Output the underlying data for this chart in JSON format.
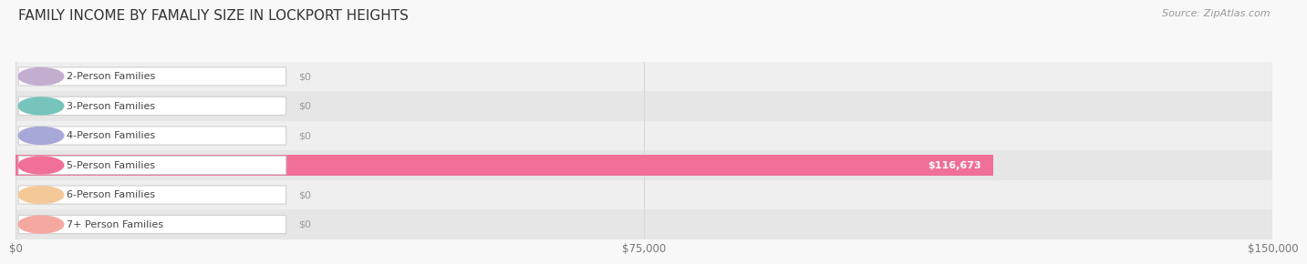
{
  "title": "FAMILY INCOME BY FAMALIY SIZE IN LOCKPORT HEIGHTS",
  "source": "Source: ZipAtlas.com",
  "categories": [
    "2-Person Families",
    "3-Person Families",
    "4-Person Families",
    "5-Person Families",
    "6-Person Families",
    "7+ Person Families"
  ],
  "values": [
    0,
    0,
    0,
    116673,
    0,
    0
  ],
  "bar_colors": [
    "#c4aed0",
    "#76c4bc",
    "#a8a8d8",
    "#f07098",
    "#f5c898",
    "#f5a8a0"
  ],
  "xlim_max": 150000,
  "xtick_values": [
    0,
    75000,
    150000
  ],
  "xtick_labels": [
    "$0",
    "$75,000",
    "$150,000"
  ],
  "title_fontsize": 11,
  "source_fontsize": 8,
  "bar_label_fontsize": 8,
  "cat_label_fontsize": 8,
  "row_bg_even": "#efefef",
  "row_bg_odd": "#e6e6e6",
  "pill_bg": "#ffffff",
  "pill_edge": "#d0d0d0",
  "value_text_color": "#ffffff",
  "zero_text_color": "#999999",
  "grid_color": "#d8d8d8",
  "fig_bg": "#f8f8f8"
}
